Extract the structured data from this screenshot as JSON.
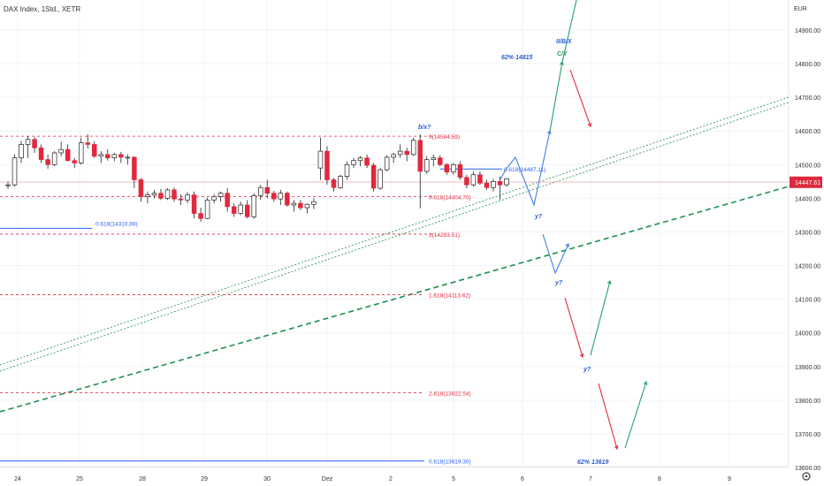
{
  "header": {
    "symbol_title": "DAX Index, 1Std., XETR"
  },
  "price_axis": {
    "currency": "EUR",
    "ticks": [
      "14900.00",
      "14800.00",
      "14700.00",
      "14600.00",
      "14500.00",
      "14400.00",
      "14300.00",
      "14200.00",
      "14100.00",
      "14000.00",
      "13900.00",
      "13800.00",
      "13700.00",
      "13600.00"
    ],
    "last_price": "14447.61"
  },
  "time_axis": {
    "labels": [
      "24",
      "25",
      "28",
      "29",
      "30",
      "Dez",
      "2",
      "5",
      "6",
      "7",
      "8",
      "9"
    ]
  },
  "colors": {
    "bull": "#ffffff",
    "bear": "#e0293d",
    "wick": "#222222",
    "fib_red": "#e0293d",
    "fib_blue": "#2962ff",
    "wave_blue": "#3f7ee8",
    "wave_red": "#e0293d",
    "wave_green": "#26a065",
    "trend_green": "#1e8f4e",
    "label_blue": "#2a5bd7"
  },
  "annotations": {
    "fib_0": "0(14584.59)",
    "fib_0618_red": "0.618(14404.70)",
    "fib_1": "1(14293.51)",
    "fib_1618": "1.618(14113.62)",
    "fib_2618": "2.618(13822.54)",
    "fib_0618_left": "0.618(14310.89)",
    "fib_0618_right": "0.618(14487.11)",
    "fib_0618_bottom": "0.618(13619.30)",
    "label_bx": "b/x?",
    "label_iibx": "II/B/X",
    "label_cy": "C/Y",
    "label_62_top": "62% 14815",
    "label_62_bottom": "62% 13619",
    "label_y1": "y?",
    "label_y2": "y?",
    "label_y3": "y?"
  },
  "chart_data": {
    "type": "candlestick",
    "title": "DAX Index, 1Std., XETR",
    "y_unit": "EUR",
    "ylim": [
      13580,
      14980
    ],
    "x_labels": [
      "24",
      "25",
      "28",
      "29",
      "30",
      "Dez",
      "2",
      "5",
      "6",
      "7",
      "8",
      "9"
    ],
    "last_price": 14447.61,
    "candles": [
      [
        14438,
        14450,
        14428,
        14440
      ],
      [
        14440,
        14530,
        14435,
        14520
      ],
      [
        14520,
        14570,
        14505,
        14560
      ],
      [
        14560,
        14585,
        14520,
        14575
      ],
      [
        14575,
        14582,
        14535,
        14550
      ],
      [
        14550,
        14560,
        14505,
        14515
      ],
      [
        14515,
        14530,
        14488,
        14500
      ],
      [
        14500,
        14540,
        14495,
        14535
      ],
      [
        14535,
        14568,
        14525,
        14545
      ],
      [
        14545,
        14560,
        14510,
        14512
      ],
      [
        14512,
        14520,
        14490,
        14505
      ],
      [
        14505,
        14580,
        14500,
        14565
      ],
      [
        14565,
        14590,
        14548,
        14560
      ],
      [
        14560,
        14570,
        14520,
        14525
      ],
      [
        14525,
        14540,
        14505,
        14530
      ],
      [
        14530,
        14545,
        14512,
        14520
      ],
      [
        14520,
        14535,
        14510,
        14530
      ],
      [
        14530,
        14538,
        14505,
        14522
      ],
      [
        14522,
        14530,
        14500,
        14522
      ],
      [
        14522,
        14525,
        14430,
        14455
      ],
      [
        14455,
        14460,
        14390,
        14405
      ],
      [
        14405,
        14420,
        14385,
        14410
      ],
      [
        14410,
        14425,
        14400,
        14415
      ],
      [
        14415,
        14428,
        14395,
        14400
      ],
      [
        14400,
        14430,
        14395,
        14425
      ],
      [
        14425,
        14432,
        14390,
        14398
      ],
      [
        14398,
        14412,
        14380,
        14395
      ],
      [
        14395,
        14418,
        14385,
        14410
      ],
      [
        14410,
        14420,
        14340,
        14355
      ],
      [
        14355,
        14372,
        14330,
        14340
      ],
      [
        14340,
        14402,
        14338,
        14395
      ],
      [
        14395,
        14412,
        14385,
        14405
      ],
      [
        14405,
        14420,
        14390,
        14415
      ],
      [
        14415,
        14430,
        14360,
        14375
      ],
      [
        14375,
        14385,
        14345,
        14355
      ],
      [
        14355,
        14390,
        14350,
        14380
      ],
      [
        14380,
        14395,
        14340,
        14345
      ],
      [
        14345,
        14415,
        14340,
        14408
      ],
      [
        14408,
        14440,
        14395,
        14432
      ],
      [
        14432,
        14455,
        14400,
        14415
      ],
      [
        14415,
        14422,
        14390,
        14398
      ],
      [
        14398,
        14425,
        14380,
        14415
      ],
      [
        14415,
        14420,
        14375,
        14380
      ],
      [
        14380,
        14395,
        14360,
        14385
      ],
      [
        14385,
        14395,
        14365,
        14372
      ],
      [
        14372,
        14385,
        14355,
        14382
      ],
      [
        14382,
        14400,
        14368,
        14390
      ],
      [
        14490,
        14580,
        14455,
        14540
      ],
      [
        14540,
        14555,
        14440,
        14455
      ],
      [
        14455,
        14460,
        14420,
        14432
      ],
      [
        14432,
        14470,
        14428,
        14465
      ],
      [
        14465,
        14510,
        14455,
        14500
      ],
      [
        14500,
        14520,
        14490,
        14512
      ],
      [
        14512,
        14525,
        14495,
        14520
      ],
      [
        14520,
        14530,
        14490,
        14498
      ],
      [
        14498,
        14505,
        14420,
        14430
      ],
      [
        14430,
        14490,
        14425,
        14485
      ],
      [
        14485,
        14528,
        14480,
        14522
      ],
      [
        14522,
        14535,
        14505,
        14530
      ],
      [
        14530,
        14560,
        14520,
        14540
      ],
      [
        14540,
        14550,
        14510,
        14530
      ],
      [
        14530,
        14580,
        14525,
        14572
      ],
      [
        14572,
        14590,
        14370,
        14480
      ],
      [
        14480,
        14525,
        14472,
        14515
      ],
      [
        14515,
        14530,
        14495,
        14520
      ],
      [
        14520,
        14528,
        14495,
        14500
      ],
      [
        14500,
        14505,
        14470,
        14478
      ],
      [
        14478,
        14505,
        14470,
        14500
      ],
      [
        14500,
        14510,
        14455,
        14462
      ],
      [
        14462,
        14470,
        14430,
        14440
      ],
      [
        14440,
        14480,
        14435,
        14470
      ],
      [
        14470,
        14480,
        14440,
        14445
      ],
      [
        14445,
        14455,
        14425,
        14432
      ],
      [
        14432,
        14458,
        14420,
        14450
      ],
      [
        14450,
        14465,
        14395,
        14440
      ],
      [
        14440,
        14460,
        14435,
        14458
      ]
    ],
    "fib_levels": [
      14584.59,
      14487.11,
      14404.7,
      14310.89,
      14293.51,
      14113.62,
      13822.54,
      13619.3
    ],
    "projections": [
      {
        "name": "wave_blue_1",
        "points": [
          [
            14487,
            14520
          ],
          [
            14400,
            14380
          ],
          [
            14603,
            14580
          ]
        ]
      },
      {
        "name": "wave_green_up",
        "points": [
          [
            14420,
            14640
          ],
          [
            14820,
            15000
          ]
        ]
      },
      {
        "name": "wave_red_down_1",
        "points": [
          [
            14775,
            14780
          ],
          [
            14580,
            14590
          ]
        ]
      },
      {
        "name": "wave_blue_2",
        "points": [
          [
            14290,
            14195
          ],
          [
            14250,
            14240
          ]
        ]
      },
      {
        "name": "wave_red_down_2",
        "points": [
          [
            14120,
            13930
          ]
        ]
      },
      {
        "name": "wave_green_up_2",
        "points": [
          [
            13930,
            14145
          ]
        ]
      },
      {
        "name": "wave_red_down_3",
        "points": [
          [
            13850,
            13650
          ]
        ]
      },
      {
        "name": "wave_green_up_3",
        "points": [
          [
            13660,
            13870
          ]
        ]
      }
    ]
  }
}
